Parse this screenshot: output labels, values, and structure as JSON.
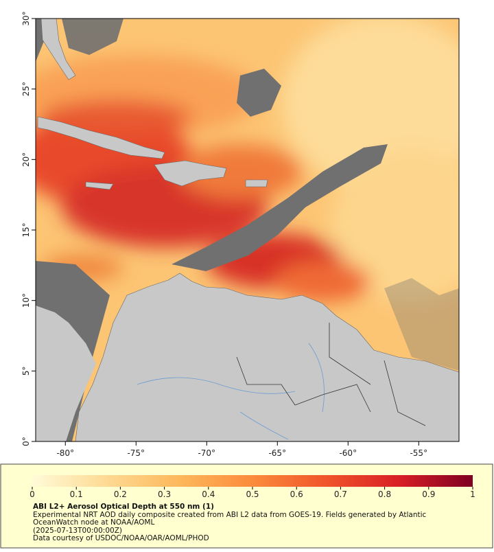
{
  "map": {
    "xlim": [
      -82.1,
      -52.15
    ],
    "ylim": [
      0,
      30
    ],
    "xticks": [
      {
        "value": -80,
        "label": "-80°"
      },
      {
        "value": -75,
        "label": "-75°"
      },
      {
        "value": -70,
        "label": "-70°"
      },
      {
        "value": -65,
        "label": "-65°"
      },
      {
        "value": -60,
        "label": "-60°"
      },
      {
        "value": -55,
        "label": "-55°"
      }
    ],
    "yticks": [
      {
        "value": 0,
        "label": "0°"
      },
      {
        "value": 5,
        "label": "5°"
      },
      {
        "value": 10,
        "label": "10°"
      },
      {
        "value": 15,
        "label": "15°"
      },
      {
        "value": 20,
        "label": "20°"
      },
      {
        "value": 25,
        "label": "25°"
      },
      {
        "value": 30,
        "label": "30°"
      }
    ]
  },
  "colorbar": {
    "range": [
      0,
      1
    ],
    "ticks": [
      0,
      0.1,
      0.2,
      0.3,
      0.4,
      0.5,
      0.6,
      0.7,
      0.8,
      0.9,
      1
    ],
    "colors": [
      "#fffbd8",
      "#feda94",
      "#fdb85c",
      "#fb8b3c",
      "#f0552a",
      "#d81e26",
      "#7e0022"
    ]
  },
  "caption": {
    "title": "ABI L2+ Aerosol Optical Depth at 550 nm (1)",
    "description": "Experimental NRT AOD daily composite created from ABI L2 data from GOES-19. Fields generated by Atlantic OceanWatch node at NOAA/AOML",
    "timestamp": "(2025-07-13T00:00:00Z)",
    "credit": "Data courtesy of USDOC/NOAA/OAR/AOML/PHOD"
  }
}
